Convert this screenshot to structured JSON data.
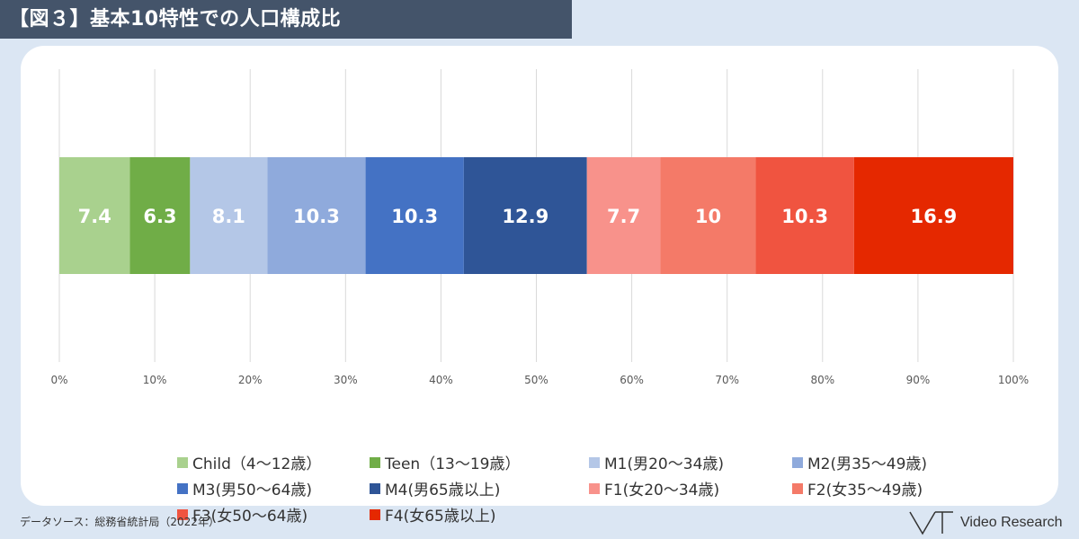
{
  "title": "【図３】基本10特性での人口構成比",
  "source": "データソース：総務省統計局（2022年）",
  "logo": "Video Research",
  "chart_data": {
    "type": "bar",
    "orientation": "horizontal-stacked-100",
    "xlim": [
      0,
      100
    ],
    "ticks": [
      "0%",
      "10%",
      "20%",
      "30%",
      "40%",
      "50%",
      "60%",
      "70%",
      "80%",
      "90%",
      "100%"
    ],
    "grid": true,
    "legend_position": "bottom",
    "series": [
      {
        "name": "Child（4〜12歳）",
        "value": 7.4,
        "label": "7.4",
        "color": "#a9d18e"
      },
      {
        "name": "Teen（13〜19歳）",
        "value": 6.3,
        "label": "6.3",
        "color": "#70ad47"
      },
      {
        "name": "M1(男20〜34歳)",
        "value": 8.1,
        "label": "8.1",
        "color": "#b4c7e7"
      },
      {
        "name": "M2(男35〜49歳)",
        "value": 10.3,
        "label": "10.3",
        "color": "#8faadc"
      },
      {
        "name": "M3(男50〜64歳)",
        "value": 10.3,
        "label": "10.3",
        "color": "#4472c4"
      },
      {
        "name": "M4(男65歳以上)",
        "value": 12.9,
        "label": "12.9",
        "color": "#2f5597"
      },
      {
        "name": "F1(女20〜34歳)",
        "value": 7.7,
        "label": "7.7",
        "color": "#f8928b"
      },
      {
        "name": "F2(女35〜49歳)",
        "value": 10,
        "label": "10",
        "color": "#f47a68"
      },
      {
        "name": "F3(女50〜64歳)",
        "value": 10.3,
        "label": "10.3",
        "color": "#f05440"
      },
      {
        "name": "F4(女65歳以上)",
        "value": 16.9,
        "label": "16.9",
        "color": "#e52800"
      }
    ]
  }
}
